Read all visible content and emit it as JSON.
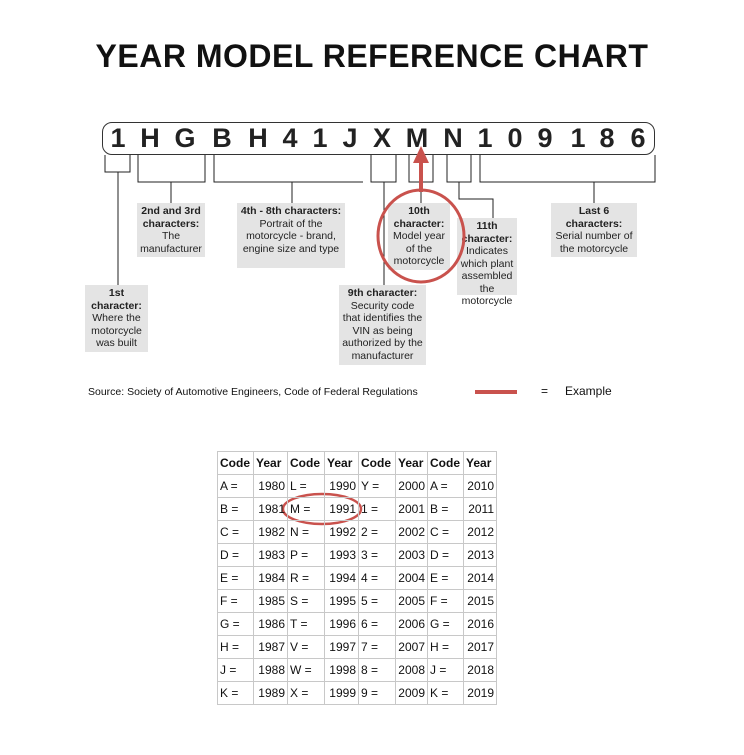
{
  "title": "YEAR MODEL REFERENCE CHART",
  "vin": [
    "1",
    "H",
    "G",
    "B",
    "H",
    "4",
    "1",
    "J",
    "X",
    "M",
    "N",
    "1",
    "0",
    "9",
    "1",
    "8",
    "6"
  ],
  "labels": {
    "first": {
      "head": "1st character:",
      "body": "Where the motorcycle was built"
    },
    "second_third": {
      "head": "2nd and 3rd characters:",
      "body": "The manufacturer"
    },
    "fourth_eighth": {
      "head": "4th - 8th characters:",
      "body": "Portrait of the motorcycle - brand, engine size and type"
    },
    "ninth": {
      "head": "9th character:",
      "body": "Security code that identifies the VIN as being authorized by the manufacturer"
    },
    "tenth": {
      "head": "10th character:",
      "body": "Model year of the motorcycle"
    },
    "eleventh": {
      "head": "11th character:",
      "body": "Indicates which plant assembled the motorcycle"
    },
    "last6": {
      "head": "Last 6 characters:",
      "body": "Serial number of the motorcycle"
    }
  },
  "source": "Source:  Society of Automotive Engineers, Code of Federal Regulations",
  "legend": {
    "equals": "=",
    "example": "Example",
    "color": "#d9534f"
  },
  "table": {
    "headers": [
      "Code",
      "Year",
      "Code",
      "Year",
      "Code",
      "Year",
      "Code",
      "Year"
    ],
    "rows": [
      [
        "A =",
        "1980",
        "L =",
        "1990",
        "Y =",
        "2000",
        "A =",
        "2010"
      ],
      [
        "B =",
        "1981",
        "M =",
        "1991",
        "1 =",
        "2001",
        "B =",
        "2011"
      ],
      [
        "C =",
        "1982",
        "N =",
        "1992",
        "2 =",
        "2002",
        "C =",
        "2012"
      ],
      [
        "D =",
        "1983",
        "P =",
        "1993",
        "3 =",
        "2003",
        "D =",
        "2013"
      ],
      [
        "E =",
        "1984",
        "R =",
        "1994",
        "4 =",
        "2004",
        "E =",
        "2014"
      ],
      [
        "F =",
        "1985",
        "S =",
        "1995",
        "5 =",
        "2005",
        "F =",
        "2015"
      ],
      [
        "G =",
        "1986",
        "T =",
        "1996",
        "6 =",
        "2006",
        "G =",
        "2016"
      ],
      [
        "H =",
        "1987",
        "V =",
        "1997",
        "7 =",
        "2007",
        "H =",
        "2017"
      ],
      [
        "J =",
        "1988",
        "W =",
        "1998",
        "8 =",
        "2008",
        "J =",
        "2018"
      ],
      [
        "K =",
        "1989",
        "X =",
        "1999",
        "9 =",
        "2009",
        "K =",
        "2019"
      ]
    ]
  }
}
